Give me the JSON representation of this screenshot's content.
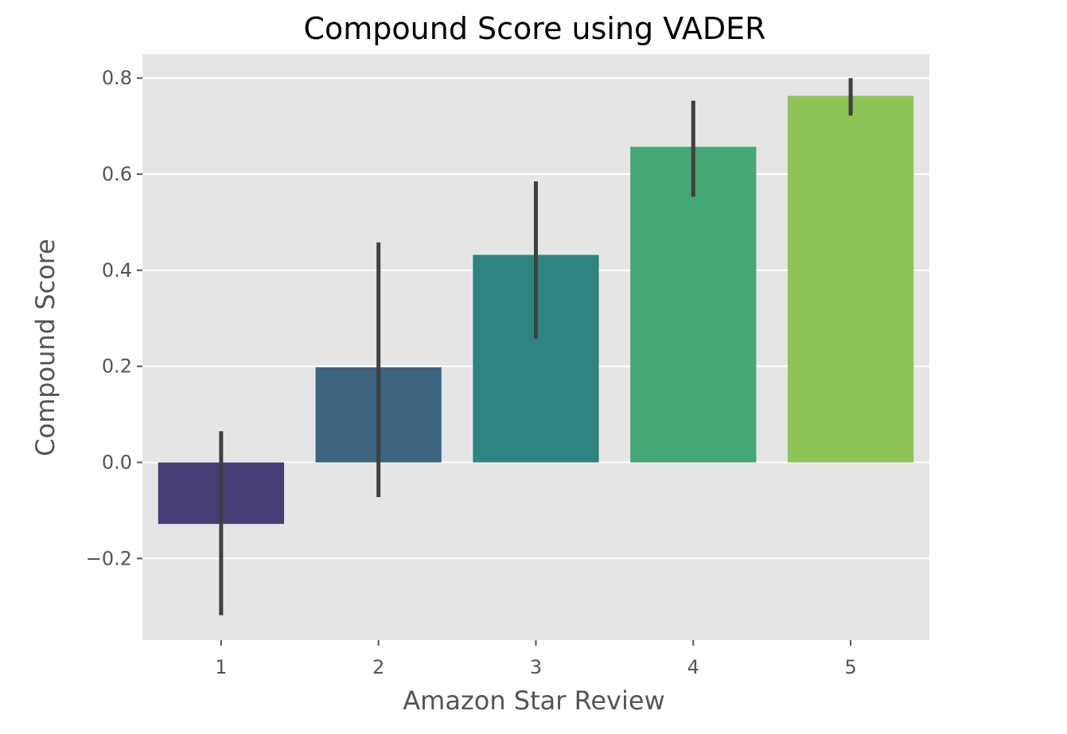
{
  "chart_data": {
    "type": "bar",
    "title": "Compound Score using VADER",
    "xlabel": "Amazon Star Review",
    "ylabel": "Compound Score",
    "categories": [
      "1",
      "2",
      "3",
      "4",
      "5"
    ],
    "values": [
      -0.128,
      0.198,
      0.432,
      0.657,
      0.763
    ],
    "error_low": [
      -0.318,
      -0.072,
      0.258,
      0.553,
      0.722
    ],
    "error_high": [
      0.065,
      0.458,
      0.585,
      0.753,
      0.8
    ],
    "ylim": [
      -0.37,
      0.85
    ],
    "yticks": [
      -0.2,
      0.0,
      0.2,
      0.4,
      0.6,
      0.8
    ],
    "ytick_labels": [
      "−0.2",
      "0.0",
      "0.2",
      "0.4",
      "0.6",
      "0.8"
    ],
    "colors": [
      "#483d74",
      "#3c6480",
      "#2e8480",
      "#45a676",
      "#8ec456"
    ],
    "error_bar_color": "#404040",
    "plot_background": "#e5e5e5",
    "grid": true,
    "grid_color": "#ffffff",
    "legend": "none"
  }
}
